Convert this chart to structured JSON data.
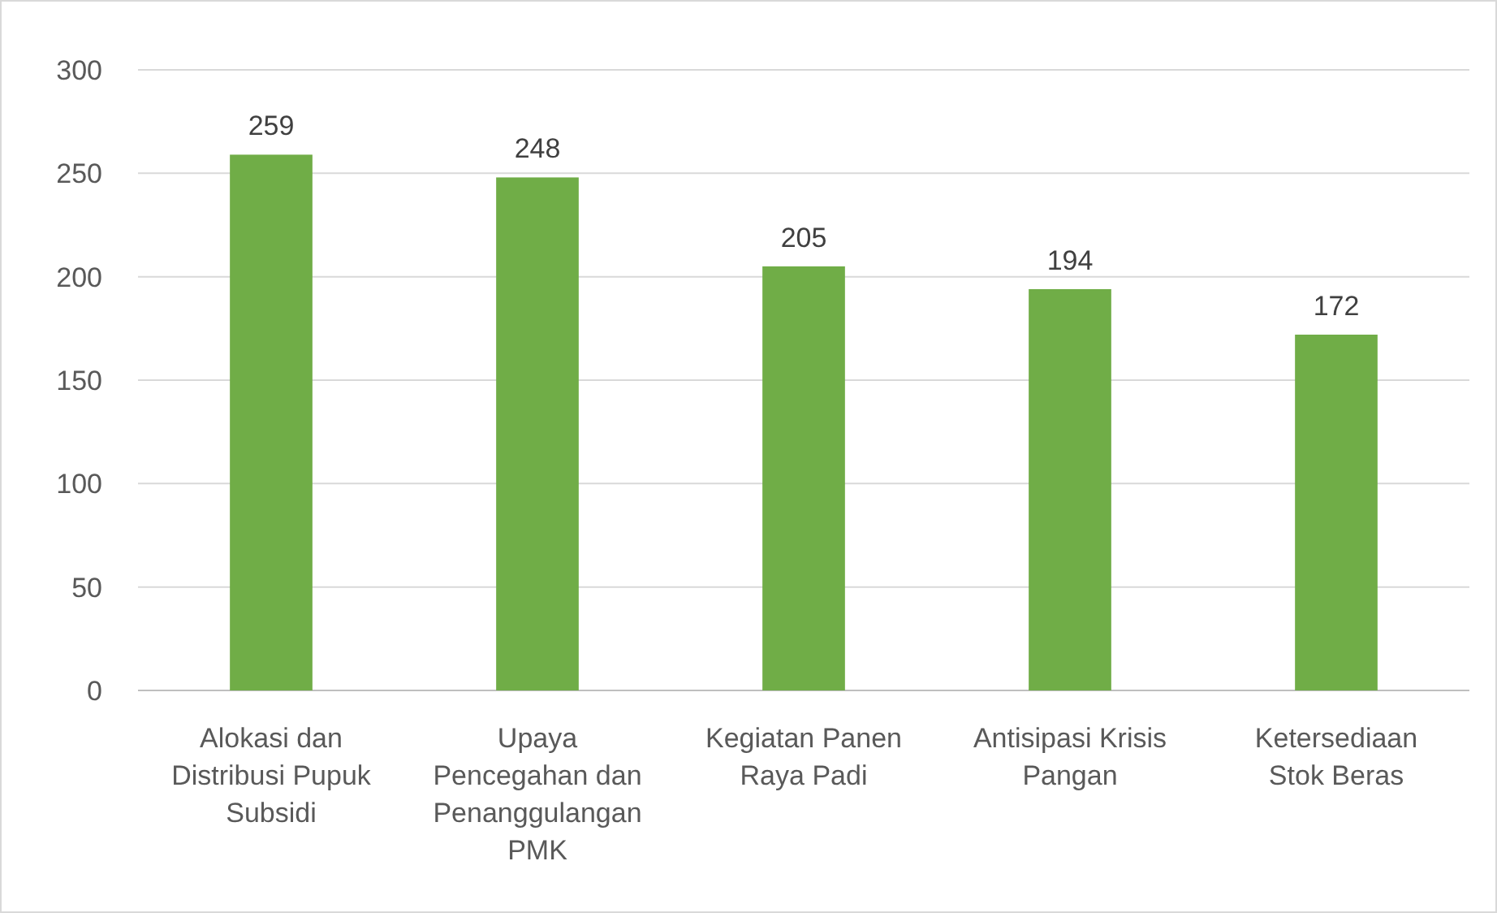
{
  "chart_data": {
    "type": "bar",
    "categories": [
      "Alokasi dan Distribusi Pupuk Subsidi",
      "Upaya Pencegahan dan Penanggulangan PMK",
      "Kegiatan Panen Raya Padi",
      "Antisipasi Krisis Pangan",
      "Ketersediaan Stok Beras"
    ],
    "values": [
      259,
      248,
      205,
      194,
      172
    ],
    "color": "#70ad47",
    "ylim": [
      0,
      300
    ],
    "yticks": [
      0,
      50,
      100,
      150,
      200,
      250,
      300
    ],
    "grid": "y",
    "data_labels": true
  }
}
